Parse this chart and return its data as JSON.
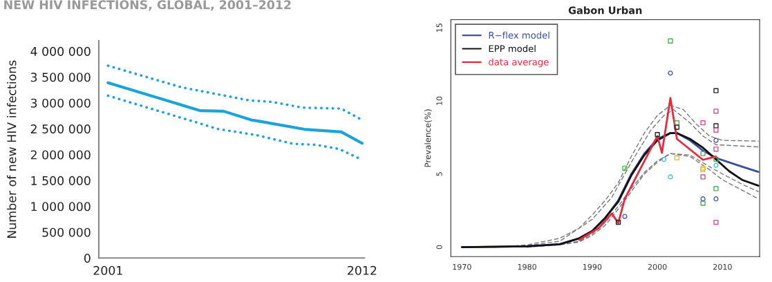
{
  "chart_data": [
    {
      "type": "line",
      "title": "NEW HIV INFECTIONS, GLOBAL, 2001–2012",
      "ylabel": "Number of new HIV infections",
      "xlim": [
        2000.6,
        2012.1
      ],
      "xticks": [
        2001,
        2012
      ],
      "ylim": [
        0,
        4200000
      ],
      "yticks": [
        {
          "value": 0,
          "label": "0"
        },
        {
          "value": 500000,
          "label": "500 000"
        },
        {
          "value": 1000000,
          "label": "1 000 000"
        },
        {
          "value": 1500000,
          "label": "1 500 000"
        },
        {
          "value": 2000000,
          "label": "2 000 000"
        },
        {
          "value": 2500000,
          "label": "2 500 000"
        },
        {
          "value": 3000000,
          "label": "3 000 000"
        },
        {
          "value": 3500000,
          "label": "3 500 000"
        },
        {
          "value": 4000000,
          "label": "4 000 000"
        }
      ],
      "series": [
        {
          "color": "#1ca3dc",
          "line_style": "solid",
          "x": [
            2001,
            2005,
            2006,
            2007.2,
            2007.5,
            2009.5,
            2011.1,
            2012
          ],
          "values": [
            3390000,
            2850000,
            2840000,
            2670000,
            2650000,
            2490000,
            2440000,
            2220000
          ]
        },
        {
          "color": "#1ca3dc",
          "line_style": "dotted",
          "x": [
            2001,
            2004.2,
            2007.1,
            2008.1,
            2009.4,
            2011.1,
            2012
          ],
          "values": [
            3720000,
            3300000,
            3050000,
            3020000,
            2910000,
            2890000,
            2670000
          ]
        },
        {
          "color": "#1ca3dc",
          "line_style": "dotted",
          "x": [
            2001,
            2005,
            2005.7,
            2007.4,
            2009,
            2010,
            2011,
            2012
          ],
          "values": [
            3140000,
            2600000,
            2500000,
            2380000,
            2210000,
            2190000,
            2110000,
            1900000
          ]
        }
      ]
    },
    {
      "type": "line",
      "title": "Gabon Urban",
      "ylabel": "Prevalence(%)",
      "legend": "top left",
      "xlim": [
        1968.3,
        2015.7
      ],
      "xticks": [
        1970,
        1980,
        1990,
        2000,
        2010
      ],
      "ylim": [
        -0.65,
        15.55
      ],
      "yticks": [
        0,
        5,
        10,
        15
      ],
      "series": [
        {
          "color": "#777777",
          "line_style": "dashed",
          "x": [
            1975,
            1980,
            1985,
            1988,
            1990,
            1992,
            1994,
            1996,
            1998,
            2000,
            2002,
            2004,
            2006,
            2008,
            2010,
            2015.5
          ],
          "values": [
            0,
            0.15,
            0.6,
            1.3,
            2.2,
            3.2,
            4.4,
            6.2,
            7.8,
            9.0,
            9.7,
            9.4,
            8.4,
            7.6,
            7.3,
            7.25
          ]
        },
        {
          "color": "#777777",
          "line_style": "dashed",
          "x": [
            1975,
            1980,
            1985,
            1990,
            1993,
            1996,
            1999,
            2001,
            2002.5,
            2005,
            2007,
            2009,
            2015.5
          ],
          "values": [
            0,
            0.1,
            0.4,
            1.9,
            3.4,
            5.8,
            8.0,
            9.0,
            9.4,
            8.5,
            7.6,
            7.0,
            6.85
          ]
        },
        {
          "color": "#777777",
          "line_style": "dashed",
          "x": [
            1980,
            1985,
            1988,
            1990,
            1992,
            1994,
            1996,
            1998,
            2000,
            2002,
            2005,
            2008,
            2010,
            2013,
            2015.5
          ],
          "values": [
            0,
            0.2,
            0.4,
            0.9,
            1.7,
            2.8,
            4.0,
            5.1,
            5.9,
            6.4,
            6.3,
            5.5,
            5.0,
            4.3,
            3.8
          ]
        },
        {
          "color": "#777777",
          "line_style": "dashed",
          "x": [
            1980,
            1985,
            1988,
            1990,
            1992,
            1994,
            1996,
            1998,
            2000,
            2002,
            2005,
            2008,
            2010,
            2013,
            2015.5
          ],
          "values": [
            0,
            0.15,
            0.35,
            0.8,
            1.5,
            2.6,
            3.8,
            5.0,
            5.8,
            6.4,
            6.2,
            5.3,
            4.6,
            3.9,
            3.3
          ]
        },
        {
          "name": "R−flex model",
          "color": "#3a4fa0",
          "line_style": "solid",
          "x": [
            1970,
            1980,
            1985,
            1988,
            1990,
            1992,
            1994,
            1996,
            1998,
            2000,
            2002,
            2003,
            2005,
            2007,
            2009,
            2011,
            2013,
            2015.5
          ],
          "values": [
            0,
            0.05,
            0.2,
            0.6,
            1.1,
            2.0,
            3.2,
            5.0,
            6.4,
            7.4,
            7.8,
            7.8,
            7.3,
            6.6,
            6.1,
            5.8,
            5.5,
            5.15
          ]
        },
        {
          "name": "EPP model",
          "color": "#111111",
          "line_style": "solid",
          "x": [
            1970,
            1980,
            1985,
            1988,
            1990,
            1992,
            1994,
            1996,
            1998,
            2000,
            2002,
            2003,
            2005,
            2007,
            2009,
            2011,
            2013,
            2015.5
          ],
          "values": [
            0,
            0.05,
            0.2,
            0.6,
            1.1,
            2.0,
            3.1,
            4.9,
            6.3,
            7.3,
            7.8,
            7.8,
            7.4,
            6.8,
            6.0,
            5.2,
            4.6,
            4.2
          ]
        },
        {
          "name": "data average",
          "color": "#e8283c",
          "line_style": "solid",
          "x": [
            1988,
            1991,
            1993,
            1994,
            1995,
            2000,
            2000.7,
            2002,
            2003,
            2007,
            2009
          ],
          "values": [
            0.5,
            1.3,
            2.3,
            1.65,
            3.3,
            7.6,
            6.45,
            10.2,
            7.4,
            5.97,
            6.2
          ]
        },
        {
          "type": "scatter",
          "marker": "square",
          "color": "#4caf50",
          "x": [
            2002,
            1995,
            2003,
            2007,
            2009,
            2007,
            2009
          ],
          "values": [
            14.1,
            5.4,
            8.5,
            6.4,
            4.0,
            3.0,
            6.0
          ]
        },
        {
          "type": "scatter",
          "marker": "circle",
          "color": "#4a56b0",
          "x": [
            2002,
            2007,
            2009,
            2009,
            1995
          ],
          "values": [
            11.9,
            3.3,
            3.3,
            7.3,
            2.1
          ]
        },
        {
          "type": "scatter",
          "marker": "square",
          "color": "#222222",
          "x": [
            2009,
            2009,
            2003,
            2000,
            1994
          ],
          "values": [
            10.7,
            8.3,
            8.2,
            7.7,
            1.7
          ]
        },
        {
          "type": "scatter",
          "marker": "square",
          "color": "#d0508a",
          "x": [
            2009,
            2007,
            2009,
            2009,
            2007,
            2009
          ],
          "values": [
            9.3,
            8.5,
            8.0,
            6.7,
            4.8,
            1.7
          ]
        },
        {
          "type": "scatter",
          "marker": "circle",
          "color": "#40c0d0",
          "x": [
            2002,
            2001,
            2009
          ],
          "values": [
            4.8,
            6.0,
            5.6
          ]
        },
        {
          "type": "scatter",
          "marker": "square",
          "color": "#e0c020",
          "x": [
            2003,
            2007,
            2007
          ],
          "values": [
            6.1,
            5.4,
            5.3
          ]
        }
      ]
    }
  ]
}
